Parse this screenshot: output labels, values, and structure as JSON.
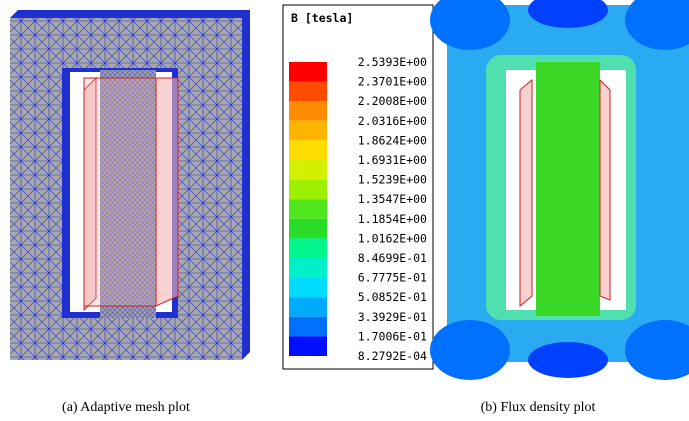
{
  "legend": {
    "title": "B [tesla]",
    "labels": [
      "2.5393E+00",
      "2.3701E+00",
      "2.2008E+00",
      "2.0316E+00",
      "1.8624E+00",
      "1.6931E+00",
      "1.5239E+00",
      "1.3547E+00",
      "1.1854E+00",
      "1.0162E+00",
      "8.4699E-01",
      "6.7775E-01",
      "5.0852E-01",
      "3.3929E-01",
      "1.7006E-01",
      "8.2792E-04"
    ],
    "colors": [
      "#ff0000",
      "#ff4a00",
      "#ff8c00",
      "#ffb400",
      "#ffdc00",
      "#d2f000",
      "#9cf000",
      "#50e61e",
      "#28dc28",
      "#00f58c",
      "#00f0c8",
      "#00dcff",
      "#00aaff",
      "#0070ff",
      "#0010ff"
    ]
  },
  "captions": [
    "(a) Adaptive mesh plot",
    "(b) Flux density plot"
  ]
}
